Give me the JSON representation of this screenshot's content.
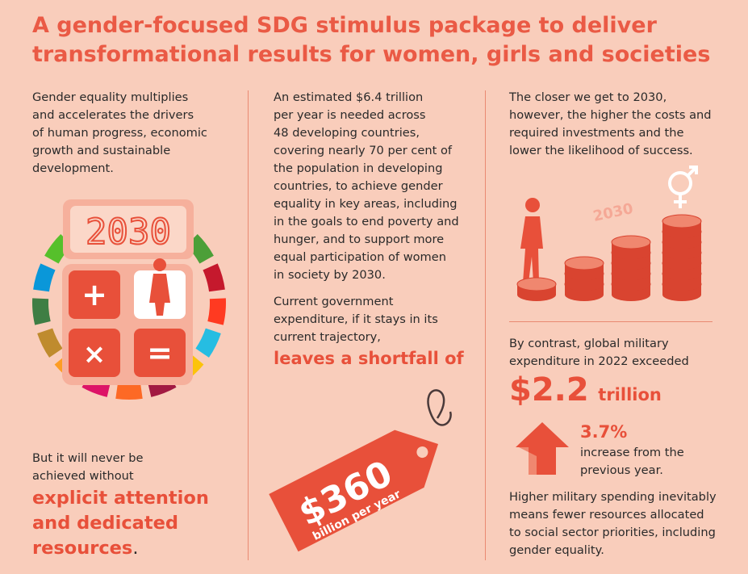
{
  "title": {
    "line1": "A gender-focused SDG stimulus package to deliver",
    "line2": "transformational results for women, girls and societies"
  },
  "col1": {
    "intro": [
      "Gender equality multiplies",
      "and accelerates the drivers",
      "of human progress, economic",
      "growth and sustainable",
      "development."
    ],
    "calculator_display": "2030",
    "calculator_keys": [
      "+",
      "×",
      "="
    ],
    "never": [
      "But it will never be",
      "achieved without"
    ],
    "emphasis": [
      "explicit attention",
      "and dedicated",
      "resources"
    ],
    "emphasis_end": "."
  },
  "col2": {
    "paragraph": [
      "An estimated $6.4 trillion",
      "per year is needed across",
      "48 developing countries,",
      "covering nearly 70 per cent of",
      "the population in developing",
      "countries, to achieve gender",
      "equality in key areas, including",
      "in the goals to end poverty and",
      "hunger, and to support more",
      "equal participation of women",
      "in society by 2030."
    ],
    "current": [
      "Current government",
      "expenditure, if it stays in its",
      "current trajectory,"
    ],
    "shortfall": "leaves a shortfall of",
    "tag_amount": "$360",
    "tag_unit": "billion per year"
  },
  "col3": {
    "intro": [
      "The closer we get to 2030,",
      "however, the higher the costs and",
      "required investments and the",
      "lower the likelihood of success."
    ],
    "illustration_label": "2030",
    "contrast": [
      "By contrast, global military",
      "expenditure in 2022 exceeded"
    ],
    "amount": "$2.2",
    "amount_unit": "trillion",
    "pct": "3.7%",
    "pct_desc": [
      "increase from the",
      "previous year."
    ],
    "closing": [
      "Higher military spending inevitably",
      "means fewer resources allocated",
      "to social sector priorities, including",
      "gender equality."
    ]
  },
  "colors": {
    "background": "#f9cdbb",
    "accent": "#e8503a",
    "divider": "#e98a72"
  },
  "sdg_colors": [
    "#e5243b",
    "#dda63a",
    "#4c9f38",
    "#c5192d",
    "#ff3a21",
    "#26bde2",
    "#fcc30b",
    "#a21942",
    "#fd6925",
    "#dd1367",
    "#fd9d24",
    "#bf8b2e",
    "#3f7e44",
    "#0a97d9",
    "#56c02b",
    "#00689d",
    "#19486a"
  ]
}
